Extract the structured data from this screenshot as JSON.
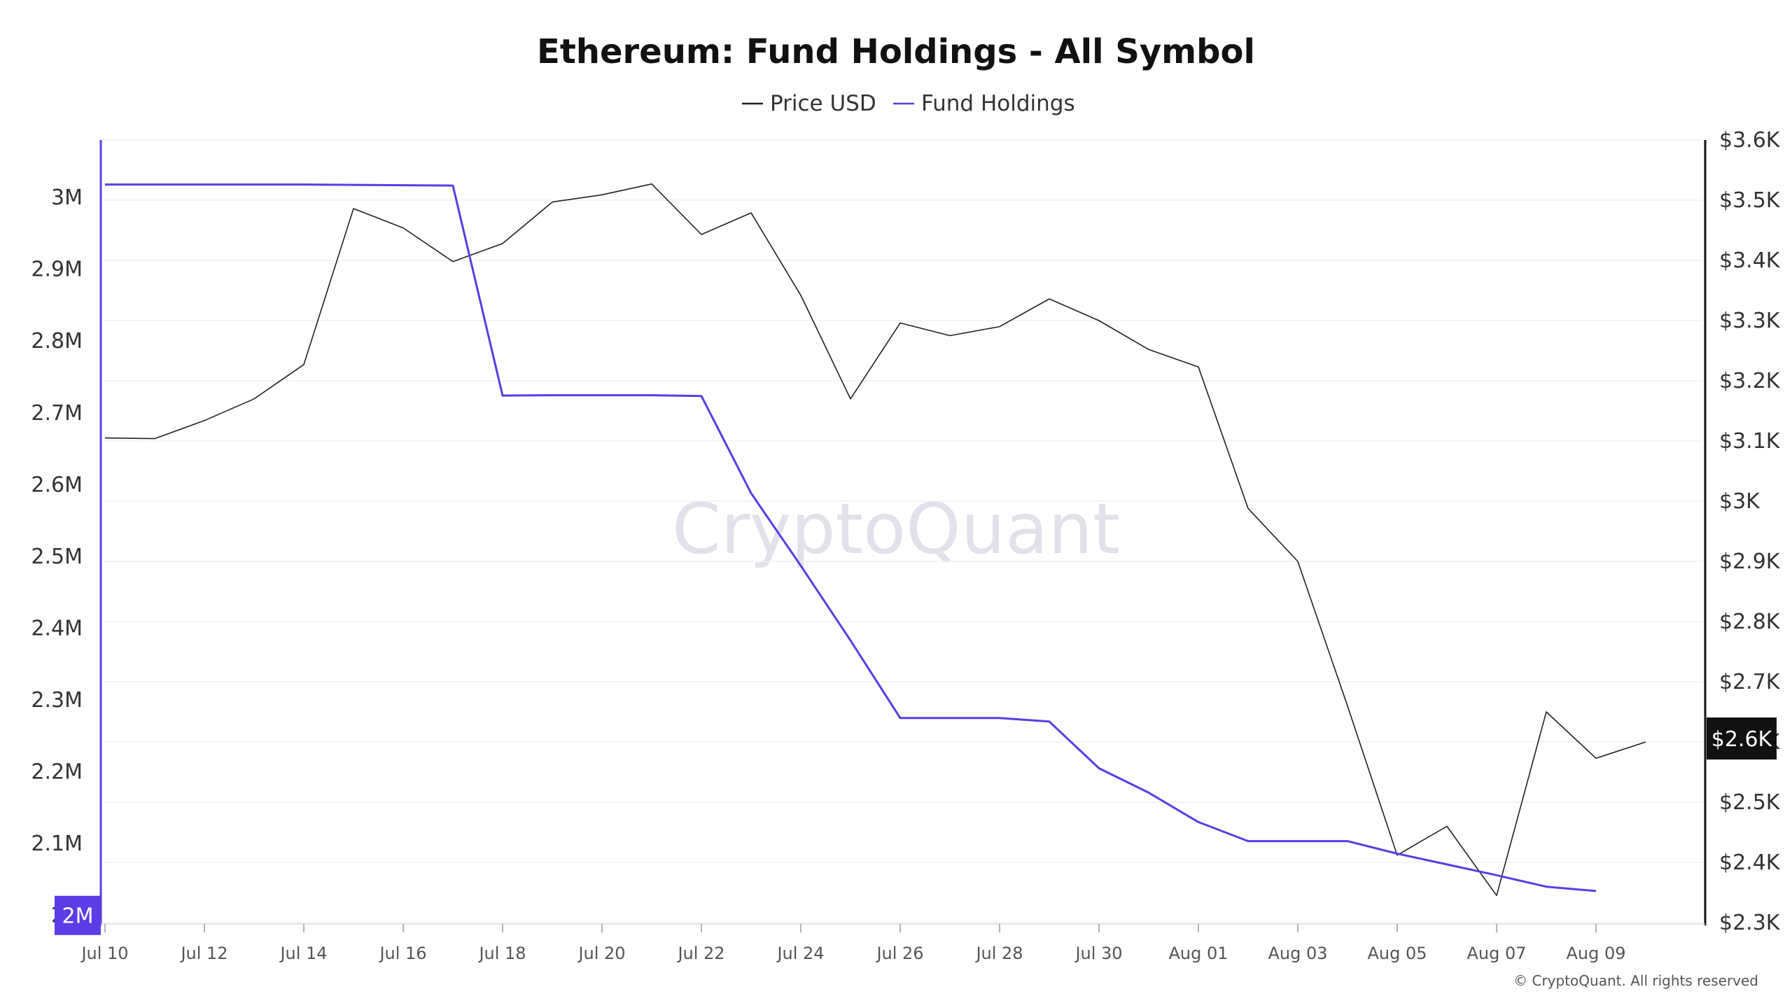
{
  "chart_data": {
    "type": "line",
    "title": "Ethereum: Fund Holdings - All Symbol",
    "legend": {
      "placement": "top-center"
    },
    "grid": true,
    "x": [
      "Jul 10",
      "Jul 11",
      "Jul 12",
      "Jul 13",
      "Jul 14",
      "Jul 15",
      "Jul 16",
      "Jul 17",
      "Jul 18",
      "Jul 19",
      "Jul 20",
      "Jul 21",
      "Jul 22",
      "Jul 23",
      "Jul 24",
      "Jul 25",
      "Jul 26",
      "Jul 27",
      "Jul 28",
      "Jul 29",
      "Jul 30",
      "Jul 31",
      "Aug 01",
      "Aug 02",
      "Aug 03",
      "Aug 04",
      "Aug 05",
      "Aug 06",
      "Aug 07",
      "Aug 08",
      "Aug 09",
      "Aug 10"
    ],
    "x_ticks": [
      "Jul 10",
      "Jul 12",
      "Jul 14",
      "Jul 16",
      "Jul 18",
      "Jul 20",
      "Jul 22",
      "Jul 24",
      "Jul 26",
      "Jul 28",
      "Jul 30",
      "Aug 01",
      "Aug 03",
      "Aug 05",
      "Aug 07",
      "Aug 09"
    ],
    "series": [
      {
        "name": "Price USD",
        "axis": "right",
        "color": "#222222",
        "values": [
          3105,
          3104,
          3134,
          3170,
          3227,
          3486,
          3454,
          3398,
          3428,
          3497,
          3509,
          3527,
          3443,
          3479,
          3342,
          3170,
          3296,
          3275,
          3290,
          3336,
          3300,
          3252,
          3223,
          2988,
          2900,
          2660,
          2412,
          2460,
          2345,
          2650,
          2573,
          2600
        ]
      },
      {
        "name": "Fund Holdings",
        "axis": "left",
        "color": "#5b3ce6",
        "values": [
          3018000,
          3018000,
          3018000,
          3018000,
          3018000,
          3017500,
          3017000,
          3016500,
          2724000,
          2724500,
          2724500,
          2724500,
          2723500,
          2588000,
          2487000,
          2383000,
          2275000,
          2275000,
          2275000,
          2270000,
          2205000,
          2171000,
          2130000,
          2103500,
          2103500,
          2103500,
          2086000,
          2071000,
          2056000,
          2040000,
          2034000,
          null
        ]
      }
    ],
    "y_left": {
      "ylim": [
        1990000,
        3080000
      ],
      "ticks": [
        "2M",
        "2.1M",
        "2.2M",
        "2.3M",
        "2.4M",
        "2.5M",
        "2.6M",
        "2.7M",
        "2.8M",
        "2.9M",
        "3M"
      ]
    },
    "y_right": {
      "ylim": [
        2300,
        3600
      ],
      "ticks": [
        "$2.3K",
        "$2.4K",
        "$2.5K",
        "$2.6K",
        "$2.7K",
        "$2.8K",
        "$2.9K",
        "$3K",
        "$3.1K",
        "$3.2K",
        "$3.3K",
        "$3.4K",
        "$3.5K",
        "$3.6K"
      ]
    },
    "badges": {
      "left": "2M",
      "right": "$2.6K"
    },
    "watermark": "CryptoQuant",
    "copyright": "© CryptoQuant. All rights reserved"
  }
}
